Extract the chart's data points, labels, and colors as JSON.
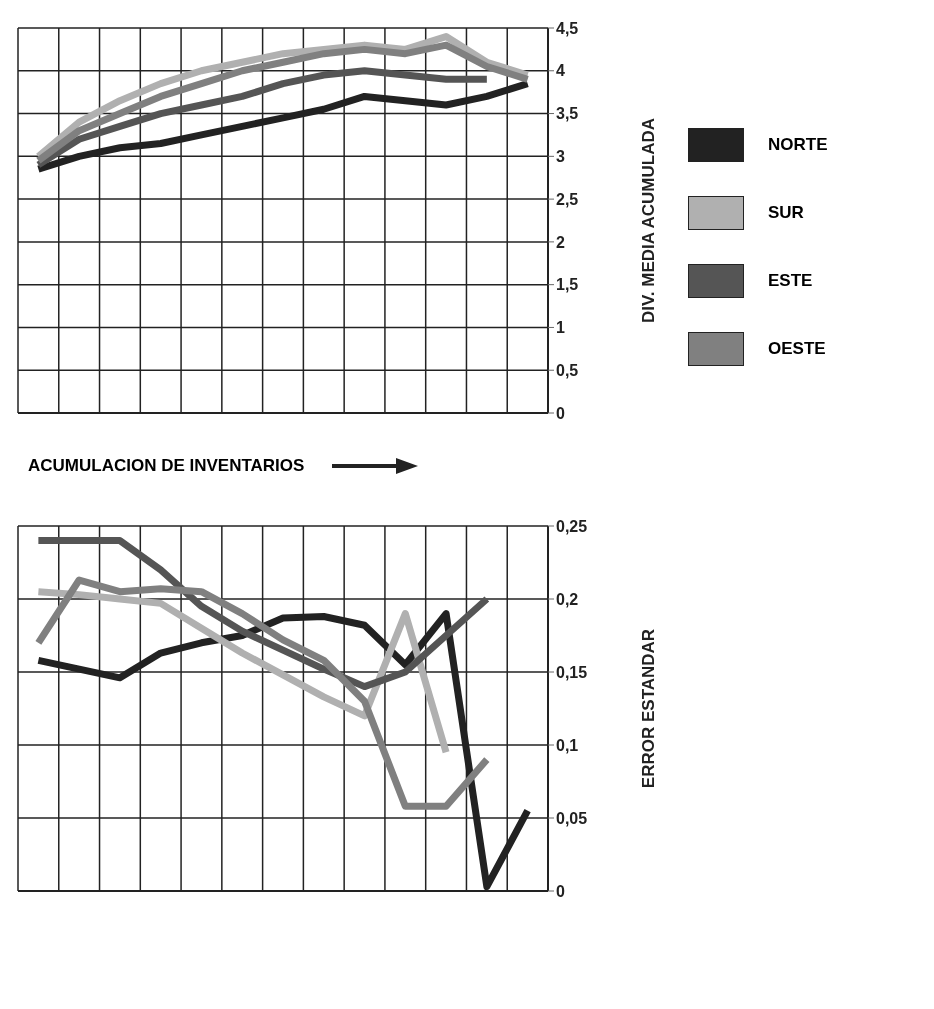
{
  "chart_data": [
    {
      "type": "line",
      "xlabel": "ACUMULACION DE INVENTARIOS",
      "ylabel": "DIV. MEDIA ACUMULADA",
      "categories": [
        null,
        null,
        null,
        null,
        null,
        null,
        null,
        null,
        null,
        null,
        null,
        null,
        null
      ],
      "series": [
        {
          "name": "NORTE",
          "color": "#222222",
          "values": [
            2.85,
            3.0,
            3.1,
            3.15,
            3.25,
            3.35,
            3.45,
            3.55,
            3.7,
            3.65,
            3.6,
            3.7,
            3.85
          ]
        },
        {
          "name": "SUR",
          "color": "#b0b0b0",
          "values": [
            3.0,
            3.4,
            3.65,
            3.85,
            4.0,
            4.1,
            4.2,
            4.25,
            4.3,
            4.25,
            4.4,
            4.1,
            3.95
          ]
        },
        {
          "name": "ESTE",
          "color": "#555555",
          "values": [
            2.9,
            3.2,
            3.35,
            3.5,
            3.6,
            3.7,
            3.85,
            3.95,
            4.0,
            3.95,
            3.9,
            3.9,
            null
          ]
        },
        {
          "name": "OESTE",
          "color": "#808080",
          "values": [
            2.95,
            3.3,
            3.5,
            3.7,
            3.85,
            4.0,
            4.1,
            4.2,
            4.25,
            4.2,
            4.3,
            4.05,
            3.9
          ]
        }
      ],
      "ylim": [
        0,
        4.5
      ],
      "yticks": [
        {
          "value": 0,
          "label": "0"
        },
        {
          "value": 0.5,
          "label": "0,5"
        },
        {
          "value": 1,
          "label": "1"
        },
        {
          "value": 1.5,
          "label": "1,5"
        },
        {
          "value": 2,
          "label": "2"
        },
        {
          "value": 2.5,
          "label": "2,5"
        },
        {
          "value": 3,
          "label": "3"
        },
        {
          "value": 3.5,
          "label": "3,5"
        },
        {
          "value": 4,
          "label": "4"
        },
        {
          "value": 4.5,
          "label": "4,5"
        }
      ],
      "grid": true,
      "legend": "right",
      "tick_labels": "y",
      "marker": "none",
      "line_style": "solid"
    },
    {
      "type": "line",
      "ylabel": "ERROR ESTANDAR",
      "categories": [
        null,
        null,
        null,
        null,
        null,
        null,
        null,
        null,
        null,
        null,
        null,
        null,
        null
      ],
      "series": [
        {
          "color": "#222222",
          "values": [
            0.158,
            0.152,
            0.146,
            0.163,
            0.17,
            0.175,
            0.187,
            0.188,
            0.182,
            0.155,
            0.19,
            0.003,
            0.055
          ]
        },
        {
          "color": "#b0b0b0",
          "values": [
            0.205,
            0.203,
            0.2,
            0.197,
            0.18,
            0.163,
            0.148,
            0.133,
            0.12,
            0.19,
            0.095,
            null,
            null
          ]
        },
        {
          "color": "#555555",
          "values": [
            0.24,
            0.24,
            0.24,
            0.22,
            0.195,
            0.178,
            0.165,
            0.152,
            0.14,
            0.15,
            0.175,
            0.2,
            null
          ]
        },
        {
          "color": "#808080",
          "values": [
            0.17,
            0.213,
            0.205,
            0.207,
            0.205,
            0.19,
            0.172,
            0.158,
            0.13,
            0.058,
            0.058,
            0.09,
            null
          ]
        }
      ],
      "ylim": [
        0,
        0.25
      ],
      "yticks": [
        {
          "value": 0,
          "label": "0"
        },
        {
          "value": 0.05,
          "label": "0,05"
        },
        {
          "value": 0.1,
          "label": "0,1"
        },
        {
          "value": 0.15,
          "label": "0,15"
        },
        {
          "value": 0.2,
          "label": "0,2"
        },
        {
          "value": 0.25,
          "label": "0,25"
        }
      ],
      "grid": true,
      "tick_labels": "y",
      "marker": "none",
      "line_style": "solid"
    }
  ]
}
